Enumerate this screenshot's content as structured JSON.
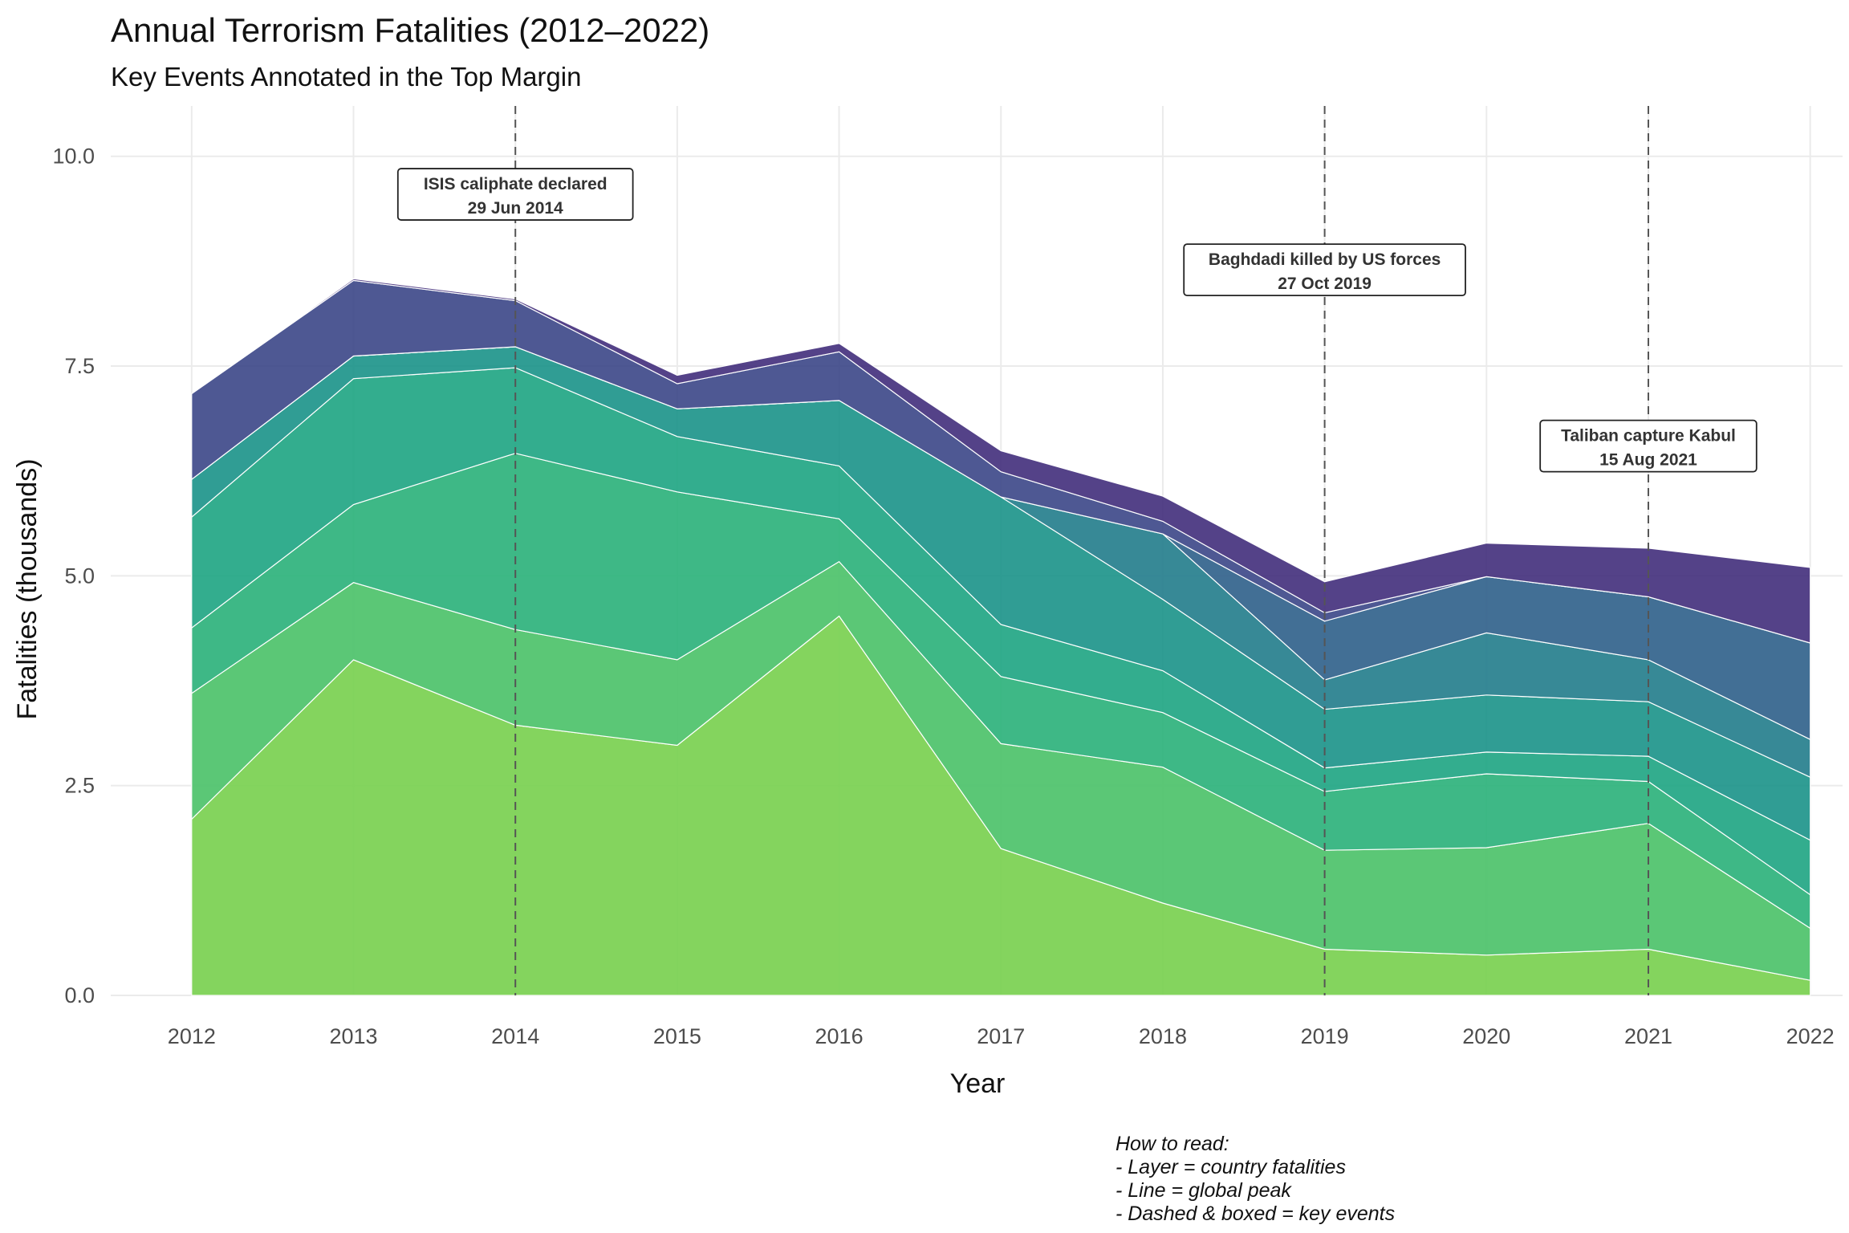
{
  "chart_data": {
    "type": "area",
    "title": "Annual Terrorism Fatalities (2012–2022)",
    "subtitle": "Key Events Annotated in the Top Margin",
    "xlabel": "Year",
    "ylabel": "Fatalities (thousands)",
    "x": [
      2012,
      2013,
      2014,
      2015,
      2016,
      2017,
      2018,
      2019,
      2020,
      2021,
      2022
    ],
    "ylim": [
      0,
      10.6
    ],
    "yticks": [
      "0.0",
      "2.5",
      "5.0",
      "7.5",
      "10.0"
    ],
    "ytick_values": [
      0,
      2.5,
      5,
      7.5,
      10
    ],
    "xticks": [
      "2012",
      "2013",
      "2014",
      "2015",
      "2016",
      "2017",
      "2018",
      "2019",
      "2020",
      "2021",
      "2022"
    ],
    "stacked": true,
    "grid": true,
    "series": [
      {
        "color": "#7ad151",
        "values": [
          2.1,
          4.0,
          3.22,
          2.98,
          4.52,
          1.75,
          1.1,
          0.55,
          0.48,
          0.55,
          0.18
        ]
      },
      {
        "color": "#4ec36b",
        "values": [
          1.5,
          0.92,
          1.14,
          1.02,
          0.65,
          1.25,
          1.62,
          1.18,
          1.28,
          1.5,
          0.62
        ]
      },
      {
        "color": "#2eb37c",
        "values": [
          0.78,
          0.93,
          2.1,
          2.0,
          0.51,
          0.8,
          0.65,
          0.7,
          0.88,
          0.5,
          0.4
        ]
      },
      {
        "color": "#22a785",
        "values": [
          1.32,
          1.5,
          1.02,
          0.66,
          0.63,
          0.62,
          0.5,
          0.28,
          0.26,
          0.3,
          0.65
        ]
      },
      {
        "color": "#1f958b",
        "values": [
          0.45,
          0.27,
          0.25,
          0.33,
          0.78,
          1.52,
          0.85,
          0.7,
          0.68,
          0.65,
          0.75
        ]
      },
      {
        "color": "#277f8e",
        "values": [
          0.0,
          0.0,
          0.0,
          0.0,
          0.0,
          0.0,
          0.78,
          0.35,
          0.74,
          0.5,
          0.45
        ]
      },
      {
        "color": "#33638d",
        "values": [
          0.0,
          0.0,
          0.0,
          0.0,
          0.0,
          0.0,
          0.0,
          0.7,
          0.67,
          0.75,
          1.15
        ]
      },
      {
        "color": "#3f4a8a",
        "values": [
          1.02,
          0.9,
          0.55,
          0.3,
          0.58,
          0.3,
          0.15,
          0.1,
          0.0,
          0.0,
          0.0
        ]
      },
      {
        "color": "#46327e",
        "values": [
          0.0,
          0.02,
          0.02,
          0.1,
          0.1,
          0.25,
          0.3,
          0.37,
          0.4,
          0.58,
          0.9
        ]
      }
    ],
    "events": [
      {
        "x": 2014,
        "label": "ISIS caliphate declared",
        "date": "29 Jun 2014",
        "label_y": 9.7
      },
      {
        "x": 2019,
        "label": "Baghdadi killed by US forces",
        "date": "27 Oct 2019",
        "label_y": 8.8
      },
      {
        "x": 2021,
        "label": "Taliban capture Kabul",
        "date": "15 Aug 2021",
        "label_y": 6.7
      }
    ]
  },
  "note": {
    "lines": [
      "How to read:",
      "- Layer = country fatalities",
      "- Line  = global peak",
      "- Dashed & boxed = key events"
    ]
  }
}
